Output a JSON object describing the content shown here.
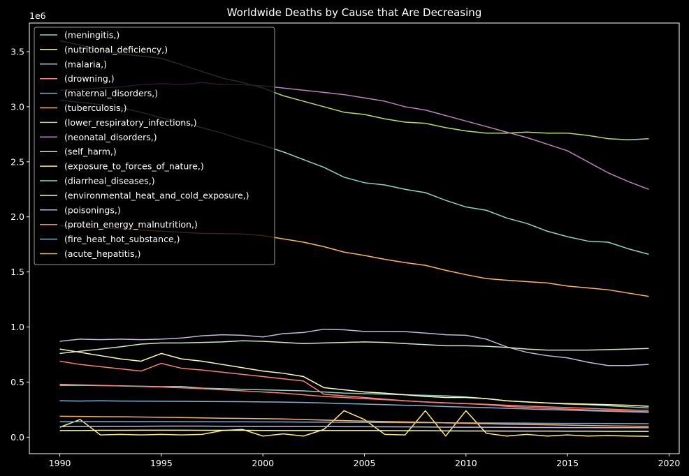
{
  "chart_data": {
    "type": "line",
    "title": "Worldwide Deaths by Cause that Are Decreasing",
    "xlabel": "",
    "ylabel": "",
    "y_offset_label": "1e6",
    "xlim": [
      1988.5,
      2020.5
    ],
    "ylim": [
      -150000,
      3760000
    ],
    "x_ticks": [
      1990,
      1995,
      2000,
      2005,
      2010,
      2015,
      2020
    ],
    "y_ticks": [
      0,
      500000,
      1000000,
      1500000,
      2000000,
      2500000,
      3000000,
      3500000
    ],
    "y_tick_labels": [
      "0.0",
      "0.5",
      "1.0",
      "1.5",
      "2.0",
      "2.5",
      "3.0",
      "3.5"
    ],
    "grid": false,
    "legend_position": "top-left",
    "x": [
      1990,
      1991,
      1992,
      1993,
      1994,
      1995,
      1996,
      1997,
      1998,
      1999,
      2000,
      2001,
      2002,
      2003,
      2004,
      2005,
      2006,
      2007,
      2008,
      2009,
      2010,
      2011,
      2012,
      2013,
      2014,
      2015,
      2016,
      2017,
      2018,
      2019
    ],
    "series": [
      {
        "name": "(meningitis,)",
        "color": "#8dd3c7",
        "values": [
          470000,
          470000,
          468000,
          466000,
          462000,
          458000,
          460000,
          445000,
          440000,
          435000,
          430000,
          425000,
          420000,
          410000,
          400000,
          395000,
          390000,
          385000,
          380000,
          375000,
          365000,
          350000,
          330000,
          320000,
          310000,
          300000,
          295000,
          285000,
          275000,
          265000
        ]
      },
      {
        "name": "(nutritional_deficiency,)",
        "color": "#feffb3",
        "values": [
          800000,
          770000,
          740000,
          710000,
          690000,
          760000,
          710000,
          690000,
          660000,
          630000,
          600000,
          580000,
          550000,
          450000,
          430000,
          410000,
          400000,
          385000,
          370000,
          360000,
          360000,
          350000,
          330000,
          320000,
          310000,
          305000,
          300000,
          295000,
          290000,
          280000
        ]
      },
      {
        "name": "(malaria,)",
        "color": "#bebada",
        "values": [
          870000,
          890000,
          885000,
          890000,
          885000,
          890000,
          900000,
          920000,
          930000,
          925000,
          910000,
          940000,
          950000,
          980000,
          975000,
          960000,
          960000,
          958000,
          945000,
          930000,
          925000,
          890000,
          820000,
          770000,
          740000,
          720000,
          680000,
          650000,
          650000,
          660000
        ]
      },
      {
        "name": "(drowning,)",
        "color": "#fa8174",
        "values": [
          690000,
          660000,
          640000,
          620000,
          600000,
          670000,
          625000,
          610000,
          590000,
          570000,
          550000,
          530000,
          510000,
          390000,
          375000,
          360000,
          345000,
          330000,
          320000,
          310000,
          305000,
          295000,
          280000,
          270000,
          262000,
          255000,
          248000,
          242000,
          236000,
          230000
        ]
      },
      {
        "name": "(maternal_disorders,)",
        "color": "#81b1d2",
        "values": [
          330000,
          328000,
          330000,
          328000,
          327000,
          326000,
          325000,
          324000,
          323000,
          322000,
          320000,
          318000,
          315000,
          310000,
          305000,
          300000,
          295000,
          290000,
          285000,
          278000,
          272000,
          268000,
          262000,
          256000,
          250000,
          245000,
          240000,
          235000,
          230000,
          225000
        ]
      },
      {
        "name": "(tuberculosis,)",
        "color": "#fdb462",
        "values": [
          1920000,
          1910000,
          1900000,
          1890000,
          1880000,
          1870000,
          1860000,
          1850000,
          1848000,
          1845000,
          1830000,
          1800000,
          1770000,
          1730000,
          1680000,
          1650000,
          1615000,
          1585000,
          1560000,
          1515000,
          1475000,
          1440000,
          1425000,
          1412000,
          1400000,
          1372000,
          1355000,
          1338000,
          1308000,
          1278000
        ]
      },
      {
        "name": "(lower_respiratory_infections,)",
        "color": "#b3de69",
        "values": [
          3600000,
          3560000,
          3520000,
          3480000,
          3460000,
          3440000,
          3380000,
          3320000,
          3260000,
          3220000,
          3170000,
          3100000,
          3050000,
          3000000,
          2950000,
          2930000,
          2890000,
          2860000,
          2850000,
          2810000,
          2780000,
          2760000,
          2760000,
          2770000,
          2760000,
          2760000,
          2740000,
          2710000,
          2700000,
          2710000
        ]
      },
      {
        "name": "(neonatal_disorders,)",
        "color": "#bc82bd",
        "values": [
          3150000,
          3160000,
          3170000,
          3180000,
          3200000,
          3210000,
          3200000,
          3220000,
          3200000,
          3200000,
          3190000,
          3170000,
          3150000,
          3130000,
          3110000,
          3080000,
          3050000,
          3000000,
          2970000,
          2920000,
          2870000,
          2820000,
          2770000,
          2720000,
          2660000,
          2600000,
          2500000,
          2400000,
          2320000,
          2250000
        ]
      },
      {
        "name": "(self_harm,)",
        "color": "#ccebc4",
        "values": [
          760000,
          780000,
          800000,
          820000,
          845000,
          855000,
          855000,
          860000,
          865000,
          875000,
          870000,
          860000,
          850000,
          855000,
          860000,
          865000,
          860000,
          850000,
          840000,
          830000,
          830000,
          825000,
          815000,
          800000,
          790000,
          790000,
          790000,
          795000,
          800000,
          805000
        ]
      },
      {
        "name": "(exposure_to_forces_of_nature,)",
        "color": "#ffed6f",
        "values": [
          90000,
          160000,
          20000,
          25000,
          20000,
          25000,
          20000,
          25000,
          60000,
          70000,
          10000,
          30000,
          10000,
          70000,
          240000,
          160000,
          25000,
          20000,
          240000,
          10000,
          240000,
          35000,
          10000,
          25000,
          10000,
          20000,
          10000,
          15000,
          10000,
          8000
        ]
      },
      {
        "name": "(diarrheal_diseases,)",
        "color": "#8dd3c7",
        "values": [
          3060000,
          3040000,
          3020000,
          2990000,
          2950000,
          2900000,
          2860000,
          2810000,
          2760000,
          2700000,
          2650000,
          2590000,
          2520000,
          2450000,
          2360000,
          2310000,
          2290000,
          2250000,
          2220000,
          2150000,
          2090000,
          2060000,
          1990000,
          1940000,
          1870000,
          1820000,
          1780000,
          1770000,
          1710000,
          1660000
        ]
      },
      {
        "name": "(environmental_heat_and_cold_exposure,)",
        "color": "#feffb3",
        "values": [
          60000,
          60000,
          62000,
          62000,
          63000,
          63000,
          63000,
          62000,
          62000,
          62000,
          61000,
          60000,
          60000,
          60000,
          60000,
          60000,
          59000,
          58000,
          58000,
          57000,
          56000,
          56000,
          55000,
          55000,
          55000,
          54000,
          54000,
          53000,
          53000,
          52000
        ]
      },
      {
        "name": "(poisonings,)",
        "color": "#bebada",
        "values": [
          95000,
          96000,
          97000,
          98000,
          99000,
          100000,
          100000,
          100000,
          99000,
          98000,
          97000,
          97000,
          96000,
          96000,
          95000,
          95000,
          94000,
          93000,
          92000,
          91000,
          90000,
          90000,
          89000,
          88000,
          88000,
          87000,
          87000,
          86000,
          86000,
          85000
        ]
      },
      {
        "name": "(protein_energy_malnutrition,)",
        "color": "#fa8174",
        "values": [
          480000,
          475000,
          470000,
          465000,
          460000,
          455000,
          448000,
          440000,
          430000,
          420000,
          410000,
          400000,
          385000,
          370000,
          360000,
          350000,
          340000,
          330000,
          320000,
          312000,
          305000,
          298000,
          290000,
          282000,
          275000,
          268000,
          262000,
          255000,
          248000,
          242000
        ]
      },
      {
        "name": "(fire_heat_hot_substance,)",
        "color": "#81b1d2",
        "values": [
          140000,
          140000,
          141000,
          141000,
          141000,
          141000,
          140000,
          140000,
          139000,
          139000,
          138000,
          138000,
          137000,
          136000,
          135000,
          134000,
          133000,
          132000,
          131000,
          130000,
          130000,
          129000,
          128000,
          127000,
          126000,
          125000,
          125000,
          124000,
          123000,
          122000
        ]
      },
      {
        "name": "(acute_hepatitis,)",
        "color": "#fdb462",
        "values": [
          190000,
          188000,
          186000,
          185000,
          183000,
          180000,
          178000,
          175000,
          172000,
          170000,
          168000,
          165000,
          160000,
          155000,
          150000,
          146000,
          142000,
          138000,
          134000,
          130000,
          126000,
          122000,
          118000,
          115000,
          112000,
          109000,
          106000,
          103000,
          100000,
          97000
        ]
      }
    ]
  }
}
